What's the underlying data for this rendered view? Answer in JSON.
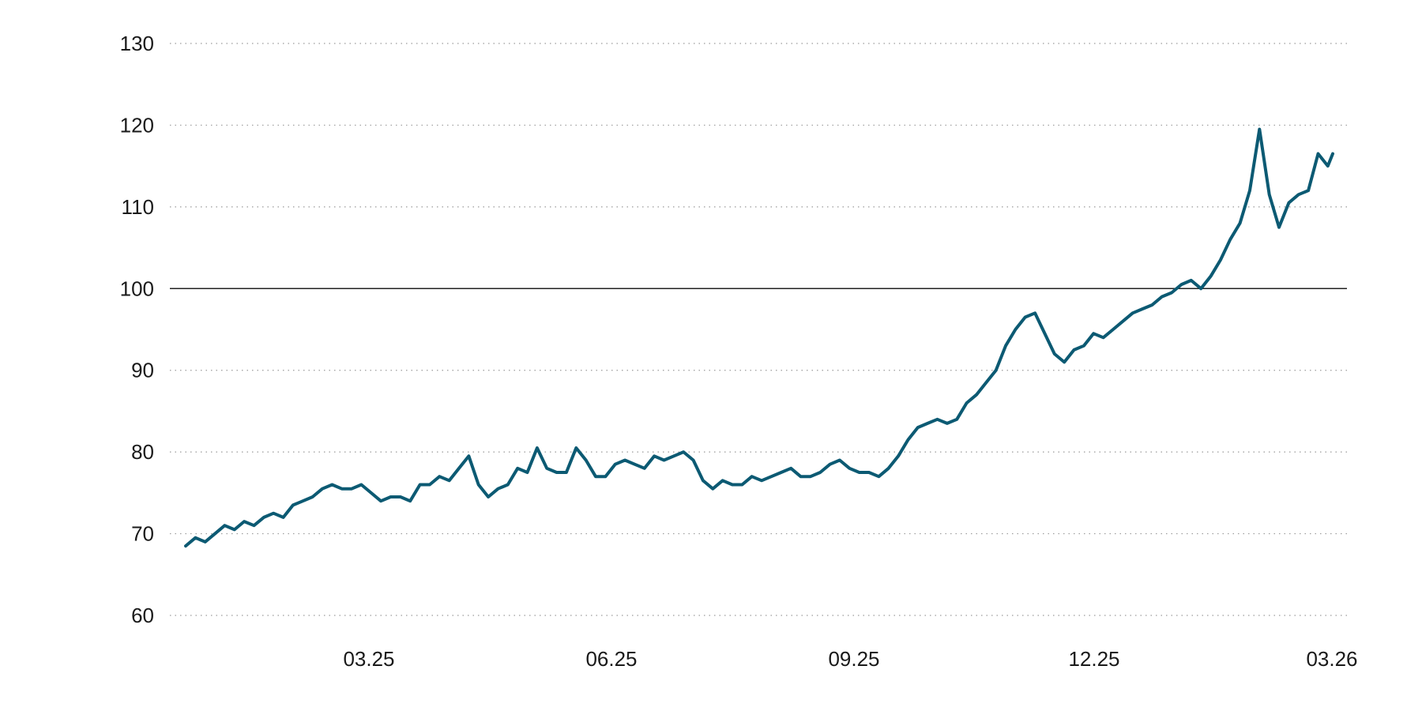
{
  "chart_data": {
    "type": "line",
    "title": "",
    "xlabel": "",
    "ylabel": "",
    "ylim": [
      60,
      130
    ],
    "y_ticks": [
      "60",
      "70",
      "80",
      "90",
      "100",
      "110",
      "120",
      "130"
    ],
    "x_ticks": [
      "03.25",
      "06.25",
      "09.25",
      "12.25",
      "03.26"
    ],
    "reference_line": 100,
    "grid": "horizontal dotted",
    "colors": {
      "line": "#0c5a73",
      "grid": "#9a9a9a",
      "reference": "#222222"
    },
    "series": [
      {
        "x": [
          "2024-12-08",
          "2024-12-12",
          "2024-12-16",
          "2024-12-20",
          "2024-12-24",
          "2024-12-28",
          "2025-01-01",
          "2025-01-05",
          "2025-01-09",
          "2025-01-13",
          "2025-01-17",
          "2025-01-21",
          "2025-01-25",
          "2025-01-29",
          "2025-02-02",
          "2025-02-06",
          "2025-02-10",
          "2025-02-14",
          "2025-02-18",
          "2025-02-22",
          "2025-02-26",
          "2025-03-02",
          "2025-03-06",
          "2025-03-10",
          "2025-03-14",
          "2025-03-18",
          "2025-03-22",
          "2025-03-26",
          "2025-03-30",
          "2025-04-03",
          "2025-04-07",
          "2025-04-11",
          "2025-04-15",
          "2025-04-19",
          "2025-04-23",
          "2025-04-27",
          "2025-05-01",
          "2025-05-05",
          "2025-05-09",
          "2025-05-13",
          "2025-05-17",
          "2025-05-21",
          "2025-05-25",
          "2025-05-29",
          "2025-06-02",
          "2025-06-06",
          "2025-06-10",
          "2025-06-14",
          "2025-06-18",
          "2025-06-22",
          "2025-06-26",
          "2025-06-30",
          "2025-07-04",
          "2025-07-08",
          "2025-07-12",
          "2025-07-16",
          "2025-07-20",
          "2025-07-24",
          "2025-07-28",
          "2025-08-01",
          "2025-08-05",
          "2025-08-09",
          "2025-08-13",
          "2025-08-17",
          "2025-08-21",
          "2025-08-25",
          "2025-08-29",
          "2025-09-02",
          "2025-09-06",
          "2025-09-10",
          "2025-09-14",
          "2025-09-18",
          "2025-09-22",
          "2025-09-26",
          "2025-09-30",
          "2025-10-04",
          "2025-10-08",
          "2025-10-12",
          "2025-10-16",
          "2025-10-20",
          "2025-10-24",
          "2025-10-28",
          "2025-11-01",
          "2025-11-05",
          "2025-11-09",
          "2025-11-13",
          "2025-11-17",
          "2025-11-21",
          "2025-11-25",
          "2025-11-29",
          "2025-12-03",
          "2025-12-07",
          "2025-12-11",
          "2025-12-15",
          "2025-12-19",
          "2025-12-23",
          "2025-12-27",
          "2025-12-31",
          "2026-01-04",
          "2026-01-08",
          "2026-01-12",
          "2026-01-16",
          "2026-01-20",
          "2026-01-24",
          "2026-01-28",
          "2026-02-01",
          "2026-02-05",
          "2026-02-09",
          "2026-02-13",
          "2026-02-17",
          "2026-02-21",
          "2026-02-25",
          "2026-03-01",
          "2026-03-05",
          "2026-03-09",
          "2026-03-13",
          "2026-03-17",
          "2026-03-21",
          "2026-03-23"
        ],
        "values": [
          68.5,
          69.5,
          69.0,
          70.0,
          71.0,
          70.5,
          71.5,
          71.0,
          72.0,
          72.5,
          72.0,
          73.5,
          74.0,
          74.5,
          75.5,
          76.0,
          75.5,
          75.5,
          76.0,
          75.0,
          74.0,
          74.5,
          74.5,
          74.0,
          76.0,
          76.0,
          77.0,
          76.5,
          78.0,
          79.5,
          76.0,
          74.5,
          75.5,
          76.0,
          78.0,
          77.5,
          80.5,
          78.0,
          77.5,
          77.5,
          80.5,
          79.0,
          77.0,
          77.0,
          78.5,
          79.0,
          78.5,
          78.0,
          79.5,
          79.0,
          79.5,
          80.0,
          79.0,
          76.5,
          75.5,
          76.5,
          76.0,
          76.0,
          77.0,
          76.5,
          77.0,
          77.5,
          78.0,
          77.0,
          77.0,
          77.5,
          78.5,
          79.0,
          78.0,
          77.5,
          77.5,
          77.0,
          78.0,
          79.5,
          81.5,
          83.0,
          83.5,
          84.0,
          83.5,
          84.0,
          86.0,
          87.0,
          88.5,
          90.0,
          93.0,
          95.0,
          96.5,
          97.0,
          94.5,
          92.0,
          91.0,
          92.5,
          93.0,
          94.5,
          94.0,
          95.0,
          96.0,
          97.0,
          97.5,
          98.0,
          99.0,
          99.5,
          100.5,
          101.0,
          100.0,
          101.5,
          103.5,
          106.0,
          108.0,
          112.0,
          119.5,
          111.5,
          107.5,
          110.5,
          111.5,
          112.0,
          116.5,
          115.0,
          116.5
        ]
      }
    ]
  }
}
